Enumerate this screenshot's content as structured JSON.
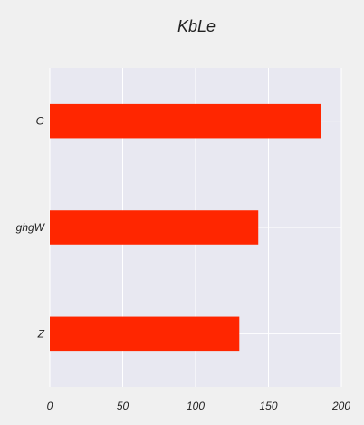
{
  "chart_data": {
    "type": "bar",
    "orientation": "horizontal",
    "title": "KbLe",
    "xlabel": "",
    "ylabel": "",
    "categories": [
      "Z",
      "ghgW",
      "G"
    ],
    "values": [
      130,
      143,
      186
    ],
    "xlim": [
      0,
      200
    ],
    "xticks": [
      0,
      50,
      100,
      150,
      200
    ],
    "grid": true,
    "colors": {
      "bar": "#ff2600",
      "plot_background": "#e8e8f1",
      "figure_background": "#f0f0f0",
      "grid": "#ffffff"
    }
  }
}
